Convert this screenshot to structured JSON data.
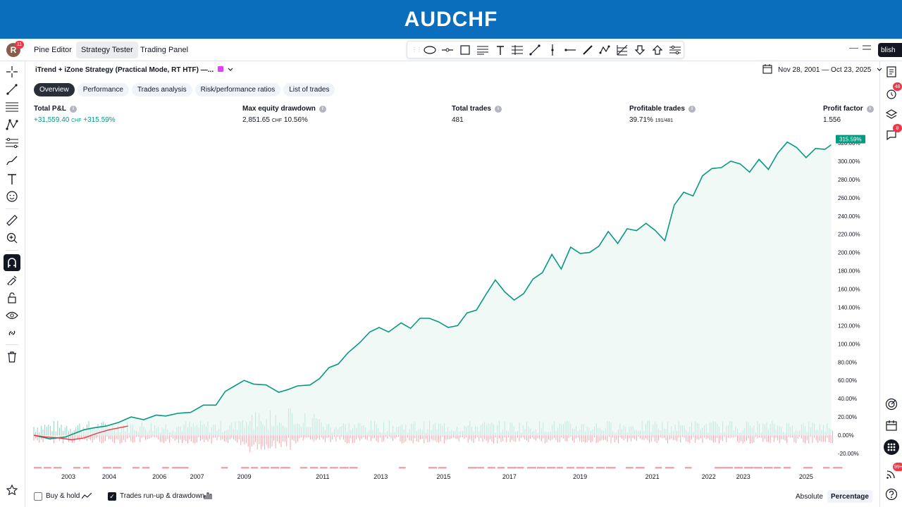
{
  "banner": {
    "title": "AUDCHF"
  },
  "topbar": {
    "avatar_letter": "R",
    "avatar_badge": "11",
    "tabs": [
      "Pine Editor",
      "Strategy Tester",
      "Trading Panel"
    ],
    "publish_label": "blish",
    "minimize": "—",
    "restore": "⎯⎯"
  },
  "drawing_tools": [
    "ellipse-icon",
    "line-marker-icon",
    "rectangle-icon",
    "lines-icon",
    "text-icon",
    "table-icon",
    "trend-line-icon",
    "vertical-line-icon",
    "horizontal-ray-icon",
    "pencil-icon",
    "pattern-icon",
    "fib-icon",
    "arrow-down-icon",
    "arrow-up-icon",
    "settings-icon"
  ],
  "left_tools": [
    "crosshair-icon",
    "trend-line-icon",
    "fib-retracement-icon",
    "pattern-icon",
    "prediction-icon",
    "brush-icon",
    "text-icon",
    "emoji-icon",
    "ruler-icon",
    "zoom-in-icon",
    "magnet-icon",
    "lock-drawing-icon",
    "lock-icon",
    "eye-icon",
    "link-icon",
    "trash-icon",
    "star-icon"
  ],
  "right_tools": [
    {
      "icon": "watchlist-icon",
      "badge": ""
    },
    {
      "icon": "alerts-icon",
      "badge": "48"
    },
    {
      "icon": "layers-icon",
      "badge": ""
    },
    {
      "icon": "chat-icon",
      "badge": "8"
    },
    {
      "icon": "target-icon",
      "badge": ""
    },
    {
      "icon": "calendar-icon",
      "badge": ""
    },
    {
      "icon": "apps-icon",
      "badge": ""
    },
    {
      "icon": "feed-icon",
      "badge": "99+"
    },
    {
      "icon": "help-icon",
      "badge": ""
    }
  ],
  "strategy": {
    "title": "iTrend + iZone Strategy (Practical Mode, RT HTF) —...",
    "date_range": "Nov 28, 2001 — Oct 23, 2025"
  },
  "tabs": [
    "Overview",
    "Performance",
    "Trades analysis",
    "Risk/performance ratios",
    "List of trades"
  ],
  "metrics": {
    "total_pnl": {
      "label": "Total P&L",
      "value": "+31,559.40",
      "unit": "CHF",
      "pct": "+315.59%"
    },
    "max_dd": {
      "label": "Max equity drawdown",
      "value": "2,851.65",
      "unit": "CHF",
      "pct": "10.56%"
    },
    "total_trades": {
      "label": "Total trades",
      "value": "481"
    },
    "profitable": {
      "label": "Profitable trades",
      "value": "39.71%",
      "sub": "191/481"
    },
    "profit_factor": {
      "label": "Profit factor",
      "value": "1.556"
    }
  },
  "chart_data": {
    "type": "area",
    "current_label": "315.59%",
    "y_ticks": [
      "320.00%",
      "300.00%",
      "280.00%",
      "260.00%",
      "240.00%",
      "220.00%",
      "200.00%",
      "180.00%",
      "160.00%",
      "140.00%",
      "120.00%",
      "100.00%",
      "80.00%",
      "60.00%",
      "40.00%",
      "20.00%",
      "0.00%",
      "-20.00%"
    ],
    "y_tick_values": [
      320,
      300,
      280,
      260,
      240,
      220,
      200,
      180,
      160,
      140,
      120,
      100,
      80,
      60,
      40,
      20,
      0,
      -20
    ],
    "ylim": [
      -25,
      330
    ],
    "x_ticks": [
      {
        "label": "2003",
        "year": 2003.0
      },
      {
        "label": "2004",
        "year": 2004.3
      },
      {
        "label": "2006",
        "year": 2005.9
      },
      {
        "label": "2007",
        "year": 2007.1
      },
      {
        "label": "2009",
        "year": 2008.6
      },
      {
        "label": "2011",
        "year": 2011.1
      },
      {
        "label": "2013",
        "year": 2012.95
      },
      {
        "label": "2015",
        "year": 2014.95
      },
      {
        "label": "2017",
        "year": 2017.05
      },
      {
        "label": "2019",
        "year": 2019.3
      },
      {
        "label": "2021",
        "year": 2021.6
      },
      {
        "label": "2022",
        "year": 2023.4
      },
      {
        "label": "2023",
        "year": 2024.5
      },
      {
        "label": "2025",
        "year": 2026.5
      }
    ],
    "xlim": [
      2001.9,
      2027.4
    ],
    "series": [
      {
        "name": "Equity",
        "x": [
          2001.9,
          2002.4,
          2002.9,
          2003.2,
          2003.5,
          2003.8,
          2004.2,
          2004.6,
          2005.0,
          2005.4,
          2005.8,
          2006.1,
          2006.5,
          2006.9,
          2007.3,
          2007.7,
          2008.0,
          2008.3,
          2008.6,
          2008.9,
          2009.3,
          2009.7,
          2010.0,
          2010.3,
          2010.7,
          2011.0,
          2011.3,
          2011.6,
          2011.9,
          2012.3,
          2012.6,
          2012.9,
          2013.2,
          2013.6,
          2013.9,
          2014.2,
          2014.5,
          2014.8,
          2015.1,
          2015.4,
          2015.7,
          2016.0,
          2016.3,
          2016.6,
          2016.9,
          2017.2,
          2017.5,
          2017.8,
          2018.1,
          2018.4,
          2018.7,
          2019.0,
          2019.3,
          2019.6,
          2019.9,
          2020.2,
          2020.5,
          2020.8,
          2021.1,
          2021.4,
          2021.7,
          2022.0,
          2022.3,
          2022.6,
          2022.9,
          2023.2,
          2023.5,
          2023.8,
          2024.1,
          2024.4,
          2024.7,
          2025.0,
          2025.3,
          2025.6,
          2025.9,
          2026.2,
          2026.5,
          2026.8,
          2027.1,
          2027.3
        ],
        "values": [
          0,
          -4,
          -2,
          2,
          6,
          8,
          10,
          14,
          20,
          17,
          22,
          21,
          24,
          25,
          33,
          33,
          48,
          54,
          60,
          56,
          55,
          47,
          50,
          54,
          55,
          62,
          74,
          78,
          90,
          102,
          113,
          118,
          113,
          123,
          117,
          128,
          128,
          124,
          118,
          120,
          134,
          137,
          154,
          170,
          157,
          148,
          155,
          171,
          178,
          198,
          182,
          206,
          199,
          200,
          207,
          223,
          210,
          226,
          224,
          232,
          224,
          213,
          252,
          266,
          262,
          284,
          292,
          293,
          300,
          297,
          288,
          302,
          291,
          309,
          321,
          315,
          304,
          314,
          313,
          318
        ]
      },
      {
        "name": "Buy & hold",
        "x": [
          2001.9,
          2002.3,
          2002.7,
          2003.1,
          2003.5,
          2003.9,
          2004.3,
          2004.6,
          2004.9
        ],
        "values": [
          0,
          -2,
          -3,
          -5,
          -3,
          2,
          6,
          8,
          10
        ]
      }
    ],
    "grid": false
  },
  "bottom": {
    "buy_hold": "Buy & hold",
    "runup": "Trades run-up & drawdown",
    "absolute": "Absolute",
    "percentage": "Percentage"
  }
}
